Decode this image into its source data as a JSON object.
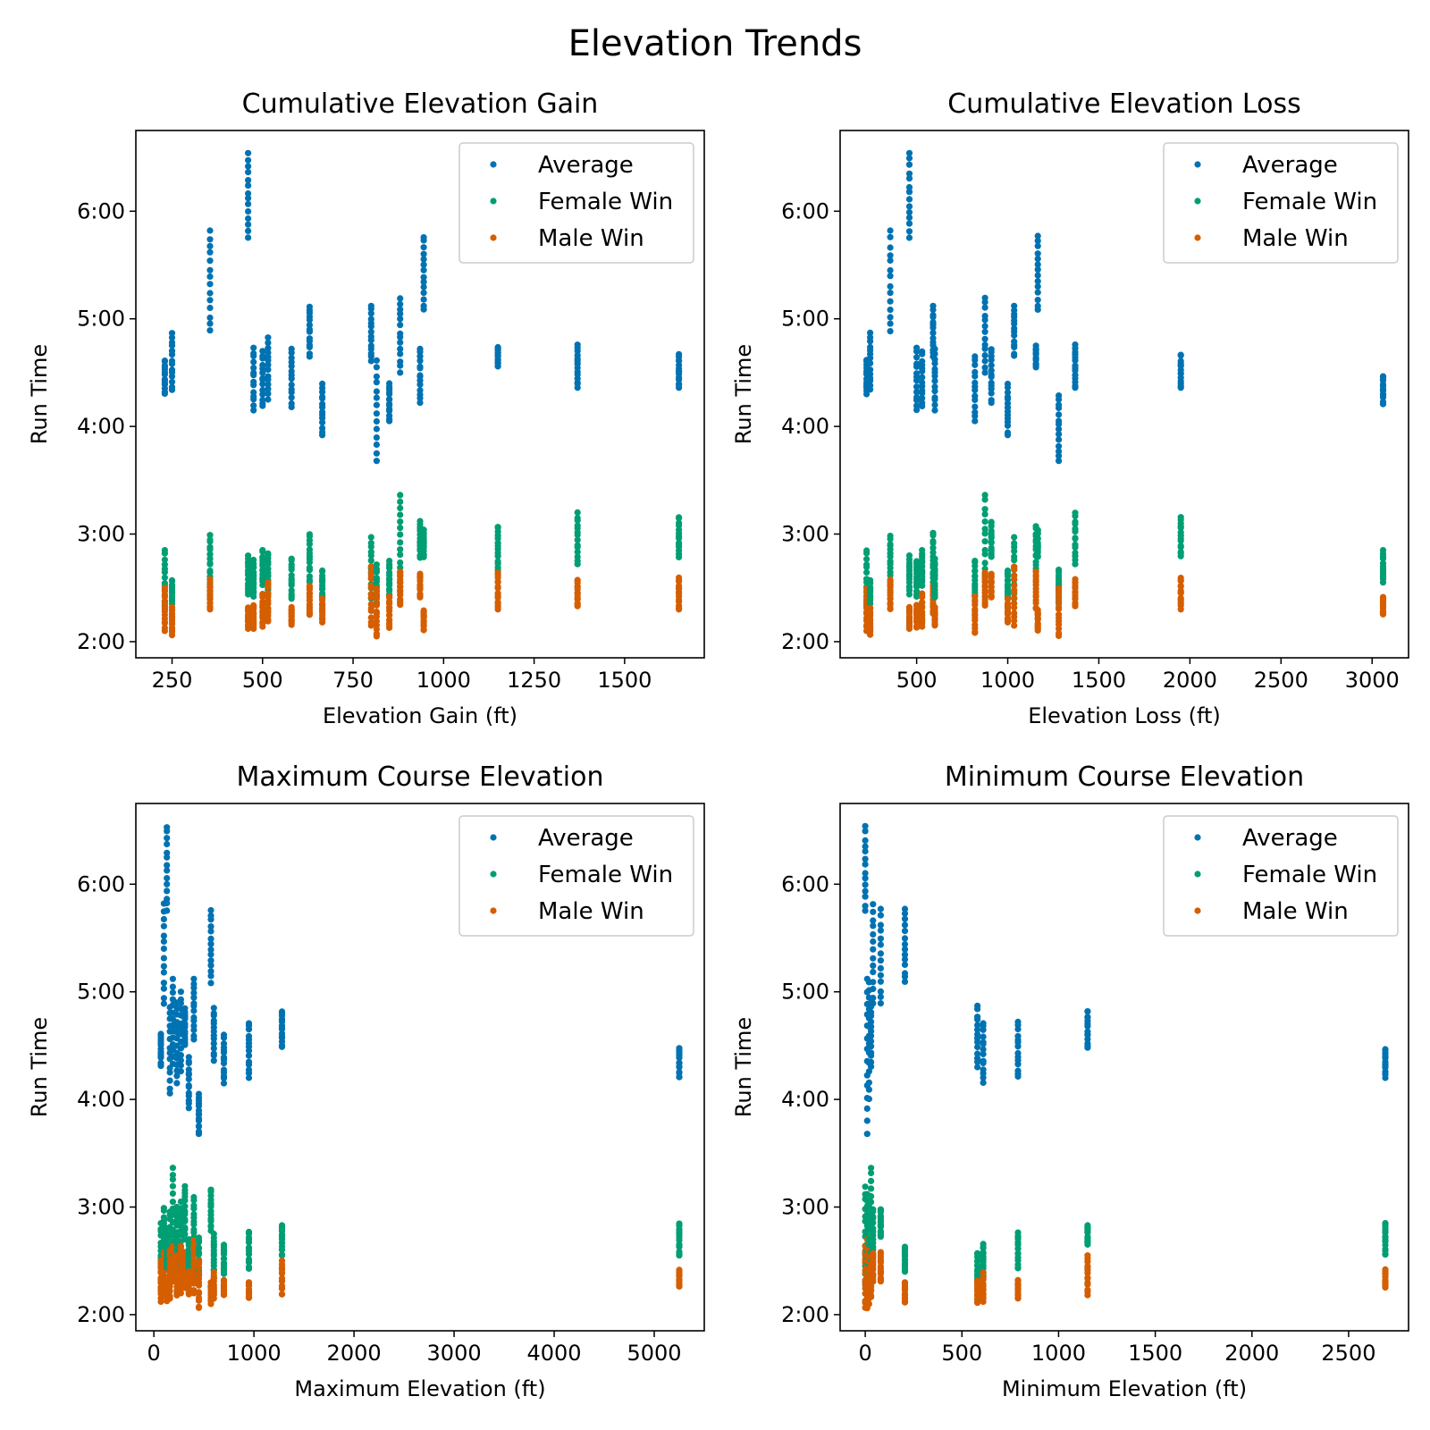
{
  "figure": {
    "title": "Elevation Trends"
  },
  "colors": {
    "average": "#0072b2",
    "female": "#009e73",
    "male": "#d55e00"
  },
  "chart_data": [
    {
      "type": "scatter",
      "title": "Cumulative Elevation Gain",
      "xlabel": "Elevation Gain (ft)",
      "ylabel": "Run Time",
      "xlim": [
        150,
        1720
      ],
      "ylim": [
        1.85,
        6.75
      ],
      "xticks": [
        250,
        500,
        750,
        1000,
        1250,
        1500
      ],
      "yticks": [
        2,
        3,
        4,
        5,
        6
      ],
      "ytick_labels": [
        "2:00",
        "3:00",
        "4:00",
        "5:00",
        "6:00"
      ],
      "legend": {
        "entries": [
          "Average",
          "Female Win",
          "Male Win"
        ],
        "position": "top-right"
      },
      "groups": [
        {
          "x": 230,
          "avg": [
            4.3,
            4.62
          ],
          "fem": [
            2.3,
            2.85
          ],
          "male": [
            2.1,
            2.5
          ]
        },
        {
          "x": 250,
          "avg": [
            4.33,
            4.87
          ],
          "fem": [
            2.35,
            2.57
          ],
          "male": [
            2.06,
            2.32
          ]
        },
        {
          "x": 355,
          "avg": [
            4.88,
            5.82
          ],
          "fem": [
            2.53,
            2.99
          ],
          "male": [
            2.3,
            2.58
          ]
        },
        {
          "x": 460,
          "avg": [
            5.75,
            6.54
          ],
          "fem": [
            2.44,
            2.8
          ],
          "male": [
            2.12,
            2.32
          ]
        },
        {
          "x": 475,
          "avg": [
            4.15,
            4.73
          ],
          "fem": [
            2.42,
            2.76
          ],
          "male": [
            2.12,
            2.34
          ]
        },
        {
          "x": 500,
          "avg": [
            4.18,
            4.7
          ],
          "fem": [
            2.52,
            2.85
          ],
          "male": [
            2.14,
            2.45
          ]
        },
        {
          "x": 515,
          "avg": [
            4.25,
            4.83
          ],
          "fem": [
            2.45,
            2.83
          ],
          "male": [
            2.18,
            2.55
          ]
        },
        {
          "x": 580,
          "avg": [
            4.18,
            4.72
          ],
          "fem": [
            2.4,
            2.77
          ],
          "male": [
            2.15,
            2.32
          ]
        },
        {
          "x": 630,
          "avg": [
            4.65,
            5.12
          ],
          "fem": [
            2.55,
            3.01
          ],
          "male": [
            2.25,
            2.52
          ]
        },
        {
          "x": 665,
          "avg": [
            3.92,
            4.4
          ],
          "fem": [
            2.4,
            2.66
          ],
          "male": [
            2.18,
            2.4
          ]
        },
        {
          "x": 800,
          "avg": [
            4.6,
            5.12
          ],
          "fem": [
            2.4,
            2.97
          ],
          "male": [
            2.15,
            2.7
          ]
        },
        {
          "x": 815,
          "avg": [
            3.68,
            4.62
          ],
          "fem": [
            2.35,
            2.72
          ],
          "male": [
            2.05,
            2.5
          ]
        },
        {
          "x": 850,
          "avg": [
            4.05,
            4.4
          ],
          "fem": [
            2.42,
            2.75
          ],
          "male": [
            2.12,
            2.42
          ]
        },
        {
          "x": 880,
          "avg": [
            4.5,
            5.2
          ],
          "fem": [
            2.55,
            3.37
          ],
          "male": [
            2.33,
            2.65
          ]
        },
        {
          "x": 935,
          "avg": [
            4.22,
            4.72
          ],
          "fem": [
            2.78,
            3.12
          ],
          "male": [
            2.4,
            2.63
          ]
        },
        {
          "x": 945,
          "avg": [
            5.08,
            5.77
          ],
          "fem": [
            2.78,
            3.05
          ],
          "male": [
            2.1,
            2.3
          ]
        },
        {
          "x": 1150,
          "avg": [
            4.55,
            4.75
          ],
          "fem": [
            2.65,
            3.08
          ],
          "male": [
            2.3,
            2.65
          ]
        },
        {
          "x": 1370,
          "avg": [
            4.36,
            4.76
          ],
          "fem": [
            2.72,
            3.2
          ],
          "male": [
            2.33,
            2.58
          ]
        },
        {
          "x": 1650,
          "avg": [
            4.36,
            4.67
          ],
          "fem": [
            2.78,
            3.17
          ],
          "male": [
            2.3,
            2.6
          ]
        }
      ]
    },
    {
      "type": "scatter",
      "title": "Cumulative Elevation Loss",
      "xlabel": "Elevation Loss (ft)",
      "ylabel": "Run Time",
      "xlim": [
        80,
        3200
      ],
      "ylim": [
        1.85,
        6.75
      ],
      "xticks": [
        500,
        1000,
        1500,
        2000,
        2500,
        3000
      ],
      "yticks": [
        2,
        3,
        4,
        5,
        6
      ],
      "ytick_labels": [
        "2:00",
        "3:00",
        "4:00",
        "5:00",
        "6:00"
      ],
      "legend": {
        "entries": [
          "Average",
          "Female Win",
          "Male Win"
        ],
        "position": "top-right"
      },
      "groups": [
        {
          "x": 225,
          "avg": [
            4.3,
            4.62
          ],
          "fem": [
            2.3,
            2.85
          ],
          "male": [
            2.1,
            2.5
          ]
        },
        {
          "x": 245,
          "avg": [
            4.33,
            4.87
          ],
          "fem": [
            2.35,
            2.57
          ],
          "male": [
            2.06,
            2.32
          ]
        },
        {
          "x": 355,
          "avg": [
            4.88,
            5.82
          ],
          "fem": [
            2.53,
            2.99
          ],
          "male": [
            2.3,
            2.58
          ]
        },
        {
          "x": 460,
          "avg": [
            5.75,
            6.54
          ],
          "fem": [
            2.44,
            2.8
          ],
          "male": [
            2.12,
            2.32
          ]
        },
        {
          "x": 500,
          "avg": [
            4.15,
            4.73
          ],
          "fem": [
            2.42,
            2.76
          ],
          "male": [
            2.12,
            2.34
          ]
        },
        {
          "x": 530,
          "avg": [
            4.18,
            4.7
          ],
          "fem": [
            2.52,
            2.85
          ],
          "male": [
            2.14,
            2.45
          ]
        },
        {
          "x": 590,
          "avg": [
            4.65,
            5.12
          ],
          "fem": [
            2.55,
            3.01
          ],
          "male": [
            2.25,
            2.52
          ]
        },
        {
          "x": 600,
          "avg": [
            4.15,
            4.72
          ],
          "fem": [
            2.4,
            2.77
          ],
          "male": [
            2.15,
            2.32
          ]
        },
        {
          "x": 820,
          "avg": [
            4.05,
            4.65
          ],
          "fem": [
            2.42,
            2.75
          ],
          "male": [
            2.08,
            2.42
          ]
        },
        {
          "x": 875,
          "avg": [
            4.5,
            5.2
          ],
          "fem": [
            2.55,
            3.37
          ],
          "male": [
            2.33,
            2.65
          ]
        },
        {
          "x": 910,
          "avg": [
            4.22,
            4.72
          ],
          "fem": [
            2.78,
            3.12
          ],
          "male": [
            2.4,
            2.63
          ]
        },
        {
          "x": 1000,
          "avg": [
            3.92,
            4.4
          ],
          "fem": [
            2.4,
            2.66
          ],
          "male": [
            2.18,
            2.4
          ]
        },
        {
          "x": 1035,
          "avg": [
            4.65,
            5.12
          ],
          "fem": [
            2.4,
            2.97
          ],
          "male": [
            2.15,
            2.7
          ]
        },
        {
          "x": 1155,
          "avg": [
            4.55,
            4.75
          ],
          "fem": [
            2.65,
            3.08
          ],
          "male": [
            2.3,
            2.65
          ]
        },
        {
          "x": 1165,
          "avg": [
            5.08,
            5.77
          ],
          "fem": [
            2.78,
            3.05
          ],
          "male": [
            2.1,
            2.3
          ]
        },
        {
          "x": 1280,
          "avg": [
            3.68,
            4.3
          ],
          "fem": [
            2.35,
            2.67
          ],
          "male": [
            2.05,
            2.5
          ]
        },
        {
          "x": 1370,
          "avg": [
            4.36,
            4.76
          ],
          "fem": [
            2.72,
            3.2
          ],
          "male": [
            2.33,
            2.58
          ]
        },
        {
          "x": 1950,
          "avg": [
            4.36,
            4.67
          ],
          "fem": [
            2.78,
            3.17
          ],
          "male": [
            2.3,
            2.6
          ]
        },
        {
          "x": 3060,
          "avg": [
            4.2,
            4.48
          ],
          "fem": [
            2.55,
            2.85
          ],
          "male": [
            2.25,
            2.42
          ]
        }
      ]
    },
    {
      "type": "scatter",
      "title": "Maximum Course Elevation",
      "xlabel": "Maximum Elevation (ft)",
      "ylabel": "Run Time",
      "xlim": [
        -180,
        5500
      ],
      "ylim": [
        1.85,
        6.75
      ],
      "xticks": [
        0,
        1000,
        2000,
        3000,
        4000,
        5000
      ],
      "yticks": [
        2,
        3,
        4,
        5,
        6
      ],
      "ytick_labels": [
        "2:00",
        "3:00",
        "4:00",
        "5:00",
        "6:00"
      ],
      "legend": {
        "entries": [
          "Average",
          "Female Win",
          "Male Win"
        ],
        "position": "top-right"
      },
      "groups": [
        {
          "x": 70,
          "avg": [
            4.3,
            4.62
          ],
          "fem": [
            2.3,
            2.85
          ],
          "male": [
            2.12,
            2.5
          ]
        },
        {
          "x": 100,
          "avg": [
            4.88,
            5.82
          ],
          "fem": [
            2.53,
            2.99
          ],
          "male": [
            2.2,
            2.58
          ]
        },
        {
          "x": 130,
          "avg": [
            5.75,
            6.54
          ],
          "fem": [
            2.44,
            2.8
          ],
          "male": [
            2.12,
            2.32
          ]
        },
        {
          "x": 160,
          "avg": [
            4.05,
            4.87
          ],
          "fem": [
            2.35,
            2.97
          ],
          "male": [
            2.15,
            2.6
          ]
        },
        {
          "x": 190,
          "avg": [
            4.33,
            5.12
          ],
          "fem": [
            2.55,
            3.37
          ],
          "male": [
            2.3,
            2.65
          ]
        },
        {
          "x": 230,
          "avg": [
            4.15,
            4.9
          ],
          "fem": [
            2.42,
            3.0
          ],
          "male": [
            2.18,
            2.55
          ]
        },
        {
          "x": 270,
          "avg": [
            4.25,
            5.0
          ],
          "fem": [
            2.45,
            3.05
          ],
          "male": [
            2.2,
            2.65
          ]
        },
        {
          "x": 310,
          "avg": [
            4.5,
            4.85
          ],
          "fem": [
            2.7,
            3.2
          ],
          "male": [
            2.25,
            2.58
          ]
        },
        {
          "x": 350,
          "avg": [
            3.92,
            4.4
          ],
          "fem": [
            2.4,
            2.7
          ],
          "male": [
            2.18,
            2.4
          ]
        },
        {
          "x": 400,
          "avg": [
            4.55,
            5.12
          ],
          "fem": [
            2.6,
            3.1
          ],
          "male": [
            2.2,
            2.7
          ]
        },
        {
          "x": 450,
          "avg": [
            3.68,
            4.05
          ],
          "fem": [
            2.35,
            2.72
          ],
          "male": [
            2.05,
            2.5
          ]
        },
        {
          "x": 570,
          "avg": [
            5.08,
            5.77
          ],
          "fem": [
            2.78,
            3.17
          ],
          "male": [
            2.1,
            2.3
          ]
        },
        {
          "x": 600,
          "avg": [
            4.36,
            4.85
          ],
          "fem": [
            2.4,
            2.75
          ],
          "male": [
            2.15,
            2.4
          ]
        },
        {
          "x": 700,
          "avg": [
            4.15,
            4.6
          ],
          "fem": [
            2.38,
            2.66
          ],
          "male": [
            2.18,
            2.32
          ]
        },
        {
          "x": 950,
          "avg": [
            4.2,
            4.72
          ],
          "fem": [
            2.42,
            2.77
          ],
          "male": [
            2.15,
            2.3
          ]
        },
        {
          "x": 1280,
          "avg": [
            4.48,
            4.83
          ],
          "fem": [
            2.55,
            2.83
          ],
          "male": [
            2.18,
            2.5
          ]
        },
        {
          "x": 5250,
          "avg": [
            4.2,
            4.48
          ],
          "fem": [
            2.55,
            2.85
          ],
          "male": [
            2.25,
            2.42
          ]
        }
      ]
    },
    {
      "type": "scatter",
      "title": "Minimum Course Elevation",
      "xlabel": "Minimum Elevation (ft)",
      "ylabel": "Run Time",
      "xlim": [
        -130,
        2810
      ],
      "ylim": [
        1.85,
        6.75
      ],
      "xticks": [
        0,
        500,
        1000,
        1500,
        2000,
        2500
      ],
      "yticks": [
        2,
        3,
        4,
        5,
        6
      ],
      "ytick_labels": [
        "2:00",
        "3:00",
        "4:00",
        "5:00",
        "6:00"
      ],
      "legend": {
        "entries": [
          "Average",
          "Female Win",
          "Male Win"
        ],
        "position": "top-right"
      },
      "groups": [
        {
          "x": 0,
          "avg": [
            5.75,
            6.54
          ],
          "fem": [
            2.3,
            3.2
          ],
          "male": [
            2.05,
            2.65
          ]
        },
        {
          "x": 10,
          "avg": [
            3.68,
            5.12
          ],
          "fem": [
            2.35,
            3.12
          ],
          "male": [
            2.06,
            2.7
          ]
        },
        {
          "x": 20,
          "avg": [
            4.0,
            5.1
          ],
          "fem": [
            2.4,
            3.05
          ],
          "male": [
            2.1,
            2.6
          ]
        },
        {
          "x": 30,
          "avg": [
            4.3,
            4.9
          ],
          "fem": [
            2.5,
            3.37
          ],
          "male": [
            2.15,
            2.55
          ]
        },
        {
          "x": 40,
          "avg": [
            4.88,
            5.82
          ],
          "fem": [
            2.53,
            2.99
          ],
          "male": [
            2.3,
            2.58
          ]
        },
        {
          "x": 80,
          "avg": [
            4.88,
            5.77
          ],
          "fem": [
            2.72,
            2.99
          ],
          "male": [
            2.3,
            2.58
          ]
        },
        {
          "x": 205,
          "avg": [
            5.08,
            5.77
          ],
          "fem": [
            2.4,
            2.63
          ],
          "male": [
            2.1,
            2.3
          ]
        },
        {
          "x": 580,
          "avg": [
            4.3,
            4.87
          ],
          "fem": [
            2.3,
            2.57
          ],
          "male": [
            2.1,
            2.32
          ]
        },
        {
          "x": 610,
          "avg": [
            4.15,
            4.72
          ],
          "fem": [
            2.35,
            2.66
          ],
          "male": [
            2.12,
            2.4
          ]
        },
        {
          "x": 790,
          "avg": [
            4.2,
            4.72
          ],
          "fem": [
            2.42,
            2.77
          ],
          "male": [
            2.15,
            2.32
          ]
        },
        {
          "x": 1150,
          "avg": [
            4.48,
            4.83
          ],
          "fem": [
            2.65,
            2.83
          ],
          "male": [
            2.18,
            2.55
          ]
        },
        {
          "x": 2690,
          "avg": [
            4.2,
            4.48
          ],
          "fem": [
            2.55,
            2.85
          ],
          "male": [
            2.25,
            2.42
          ]
        }
      ]
    }
  ]
}
